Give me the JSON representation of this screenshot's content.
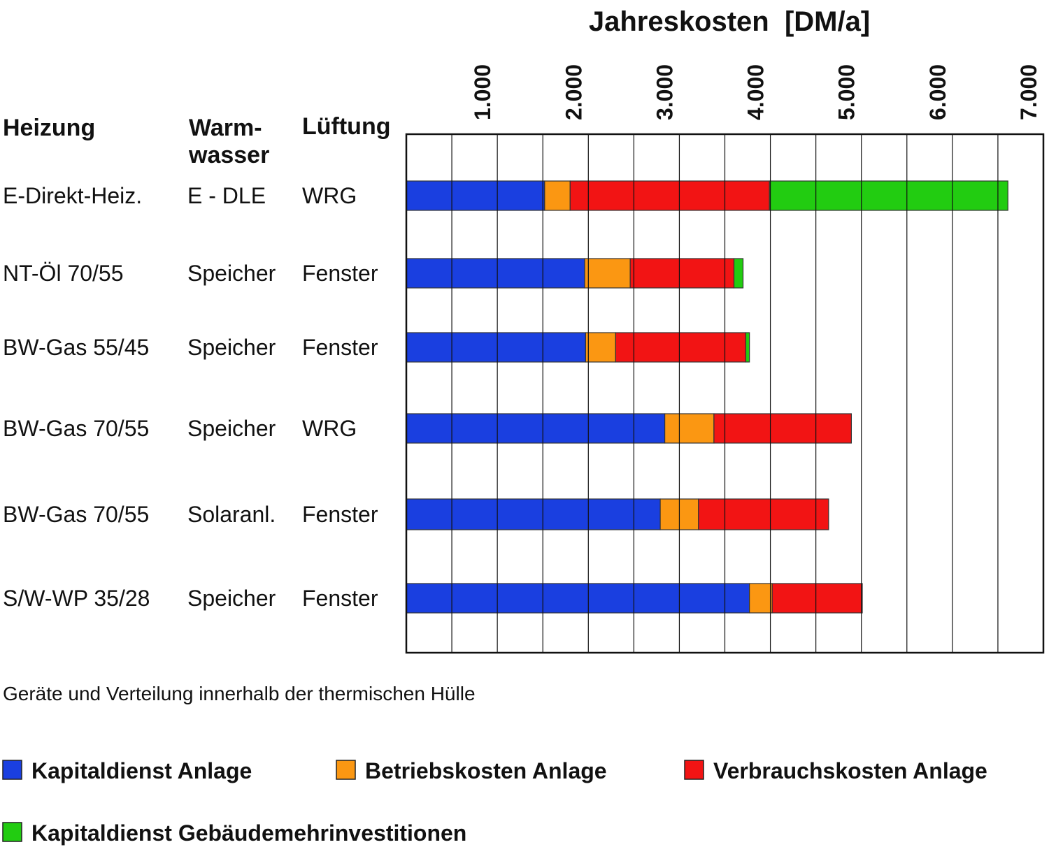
{
  "chart_data": {
    "type": "bar",
    "orientation": "horizontal",
    "stacked": true,
    "title": "Jahreskosten  [DM/a]",
    "xlim": [
      0,
      7000
    ],
    "x_ticks": [
      "1.000",
      "2.000",
      "3.000",
      "4.000",
      "5.000",
      "6.000",
      "7.000"
    ],
    "x_tick_values": [
      1000,
      2000,
      3000,
      4000,
      5000,
      6000,
      7000
    ],
    "grid": true,
    "table_headers": {
      "heizung": "Heizung",
      "warmwasser_line1": "Warm-",
      "warmwasser_line2": "wasser",
      "lueftung": "Lüftung"
    },
    "rows": [
      {
        "heizung": "E-Direkt-Heiz.",
        "warmwasser": "E - DLE",
        "lueftung": "WRG"
      },
      {
        "heizung": "NT-Öl 70/55",
        "warmwasser": "Speicher",
        "lueftung": "Fenster"
      },
      {
        "heizung": "BW-Gas 55/45",
        "warmwasser": "Speicher",
        "lueftung": "Fenster"
      },
      {
        "heizung": "BW-Gas 70/55",
        "warmwasser": "Speicher",
        "lueftung": "WRG"
      },
      {
        "heizung": "BW-Gas 70/55",
        "warmwasser": "Solaranl.",
        "lueftung": "Fenster"
      },
      {
        "heizung": "S/W-WP 35/28",
        "warmwasser": "Speicher",
        "lueftung": "Fenster"
      }
    ],
    "series": [
      {
        "name": "Kapitaldienst Anlage",
        "color": "#1a3fe0",
        "values": [
          1520,
          1960,
          1970,
          2840,
          2790,
          3770
        ]
      },
      {
        "name": "Betriebskosten Anlage",
        "color": "#fb9712",
        "values": [
          280,
          500,
          330,
          540,
          420,
          250
        ]
      },
      {
        "name": "Verbrauchskosten Anlage",
        "color": "#f21414",
        "values": [
          2190,
          1140,
          1430,
          1510,
          1430,
          990
        ]
      },
      {
        "name": "Kapitaldienst Gebäudemehrinvestitionen",
        "color": "#22cc11",
        "values": [
          2620,
          100,
          40,
          0,
          0,
          0
        ]
      }
    ],
    "note": "Geräte und Verteilung innerhalb der thermischen Hülle"
  }
}
